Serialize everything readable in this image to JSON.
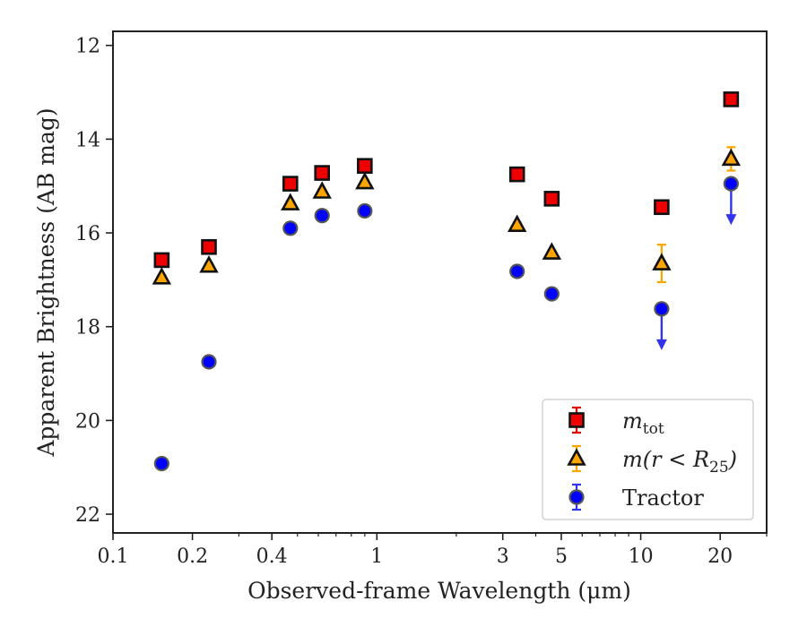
{
  "chart_data": {
    "type": "scatter",
    "title": "",
    "xlabel": "Observed-frame Wavelength (μm)",
    "ylabel": "Apparent Brightness (AB mag)",
    "xscale": "log",
    "xlim": [
      0.1,
      30
    ],
    "ylim": [
      22.4,
      11.7
    ],
    "y_inverted": true,
    "grid": false,
    "legend_position": "lower-right",
    "x_ticks": [
      {
        "value": 0.1,
        "label": "0.1"
      },
      {
        "value": 0.2,
        "label": "0.2"
      },
      {
        "value": 0.4,
        "label": "0.4"
      },
      {
        "value": 1,
        "label": "1"
      },
      {
        "value": 3,
        "label": "3"
      },
      {
        "value": 5,
        "label": "5"
      },
      {
        "value": 10,
        "label": "10"
      },
      {
        "value": 20,
        "label": "20"
      }
    ],
    "y_ticks": [
      {
        "value": 12,
        "label": "12"
      },
      {
        "value": 14,
        "label": "14"
      },
      {
        "value": 16,
        "label": "16"
      },
      {
        "value": 18,
        "label": "18"
      },
      {
        "value": 20,
        "label": "20"
      },
      {
        "value": 22,
        "label": "22"
      }
    ],
    "series": [
      {
        "name": "m_tot",
        "legend_label": {
          "base": "m",
          "sub": "tot",
          "rest": ""
        },
        "marker": "square",
        "color": "#ee0000",
        "edge_color": "#111111",
        "error_color": "#dd0000",
        "points": [
          {
            "x": 0.153,
            "y": 16.58,
            "err": 0.05
          },
          {
            "x": 0.231,
            "y": 16.3,
            "err": 0.05
          },
          {
            "x": 0.47,
            "y": 14.95,
            "err": 0.05
          },
          {
            "x": 0.62,
            "y": 14.72,
            "err": 0.05
          },
          {
            "x": 0.9,
            "y": 14.57,
            "err": 0.05
          },
          {
            "x": 3.4,
            "y": 14.75,
            "err": 0.05
          },
          {
            "x": 4.6,
            "y": 15.27,
            "err": 0.05
          },
          {
            "x": 12.0,
            "y": 15.45,
            "err": 0.05
          },
          {
            "x": 22.0,
            "y": 13.15,
            "err": 0.05
          }
        ]
      },
      {
        "name": "m(r < R_25)",
        "legend_label": {
          "base": "m(r < R",
          "sub": "25",
          "rest": ")"
        },
        "marker": "triangle",
        "color": "#ffa500",
        "edge_color": "#111111",
        "error_color": "#ffa500",
        "points": [
          {
            "x": 0.153,
            "y": 16.95,
            "err": 0.05
          },
          {
            "x": 0.231,
            "y": 16.7,
            "err": 0.05
          },
          {
            "x": 0.47,
            "y": 15.37,
            "err": 0.05
          },
          {
            "x": 0.62,
            "y": 15.12,
            "err": 0.05
          },
          {
            "x": 0.9,
            "y": 14.92,
            "err": 0.05
          },
          {
            "x": 3.4,
            "y": 15.83,
            "err": 0.05
          },
          {
            "x": 4.6,
            "y": 16.42,
            "err": 0.05
          },
          {
            "x": 12.0,
            "y": 16.65,
            "err": 0.4
          },
          {
            "x": 22.0,
            "y": 14.42,
            "err": 0.25
          }
        ]
      },
      {
        "name": "Tractor",
        "legend_label": {
          "base": "Tractor",
          "sub": "",
          "rest": ""
        },
        "marker": "circle",
        "color": "#0000ff",
        "edge_color": "#555555",
        "error_color": "#3333ee",
        "points": [
          {
            "x": 0.153,
            "y": 20.92,
            "err": 0.05
          },
          {
            "x": 0.231,
            "y": 18.75,
            "err": 0.05
          },
          {
            "x": 0.47,
            "y": 15.9,
            "err": 0.05
          },
          {
            "x": 0.62,
            "y": 15.63,
            "err": 0.05
          },
          {
            "x": 0.9,
            "y": 15.53,
            "err": 0.05
          },
          {
            "x": 3.4,
            "y": 16.82,
            "err": 0.05
          },
          {
            "x": 4.6,
            "y": 17.3,
            "err": 0.05
          },
          {
            "x": 12.0,
            "y": 17.62,
            "err": 0.05,
            "upper_limit": true
          },
          {
            "x": 22.0,
            "y": 14.95,
            "err": 0.05,
            "upper_limit": true
          }
        ]
      }
    ]
  }
}
